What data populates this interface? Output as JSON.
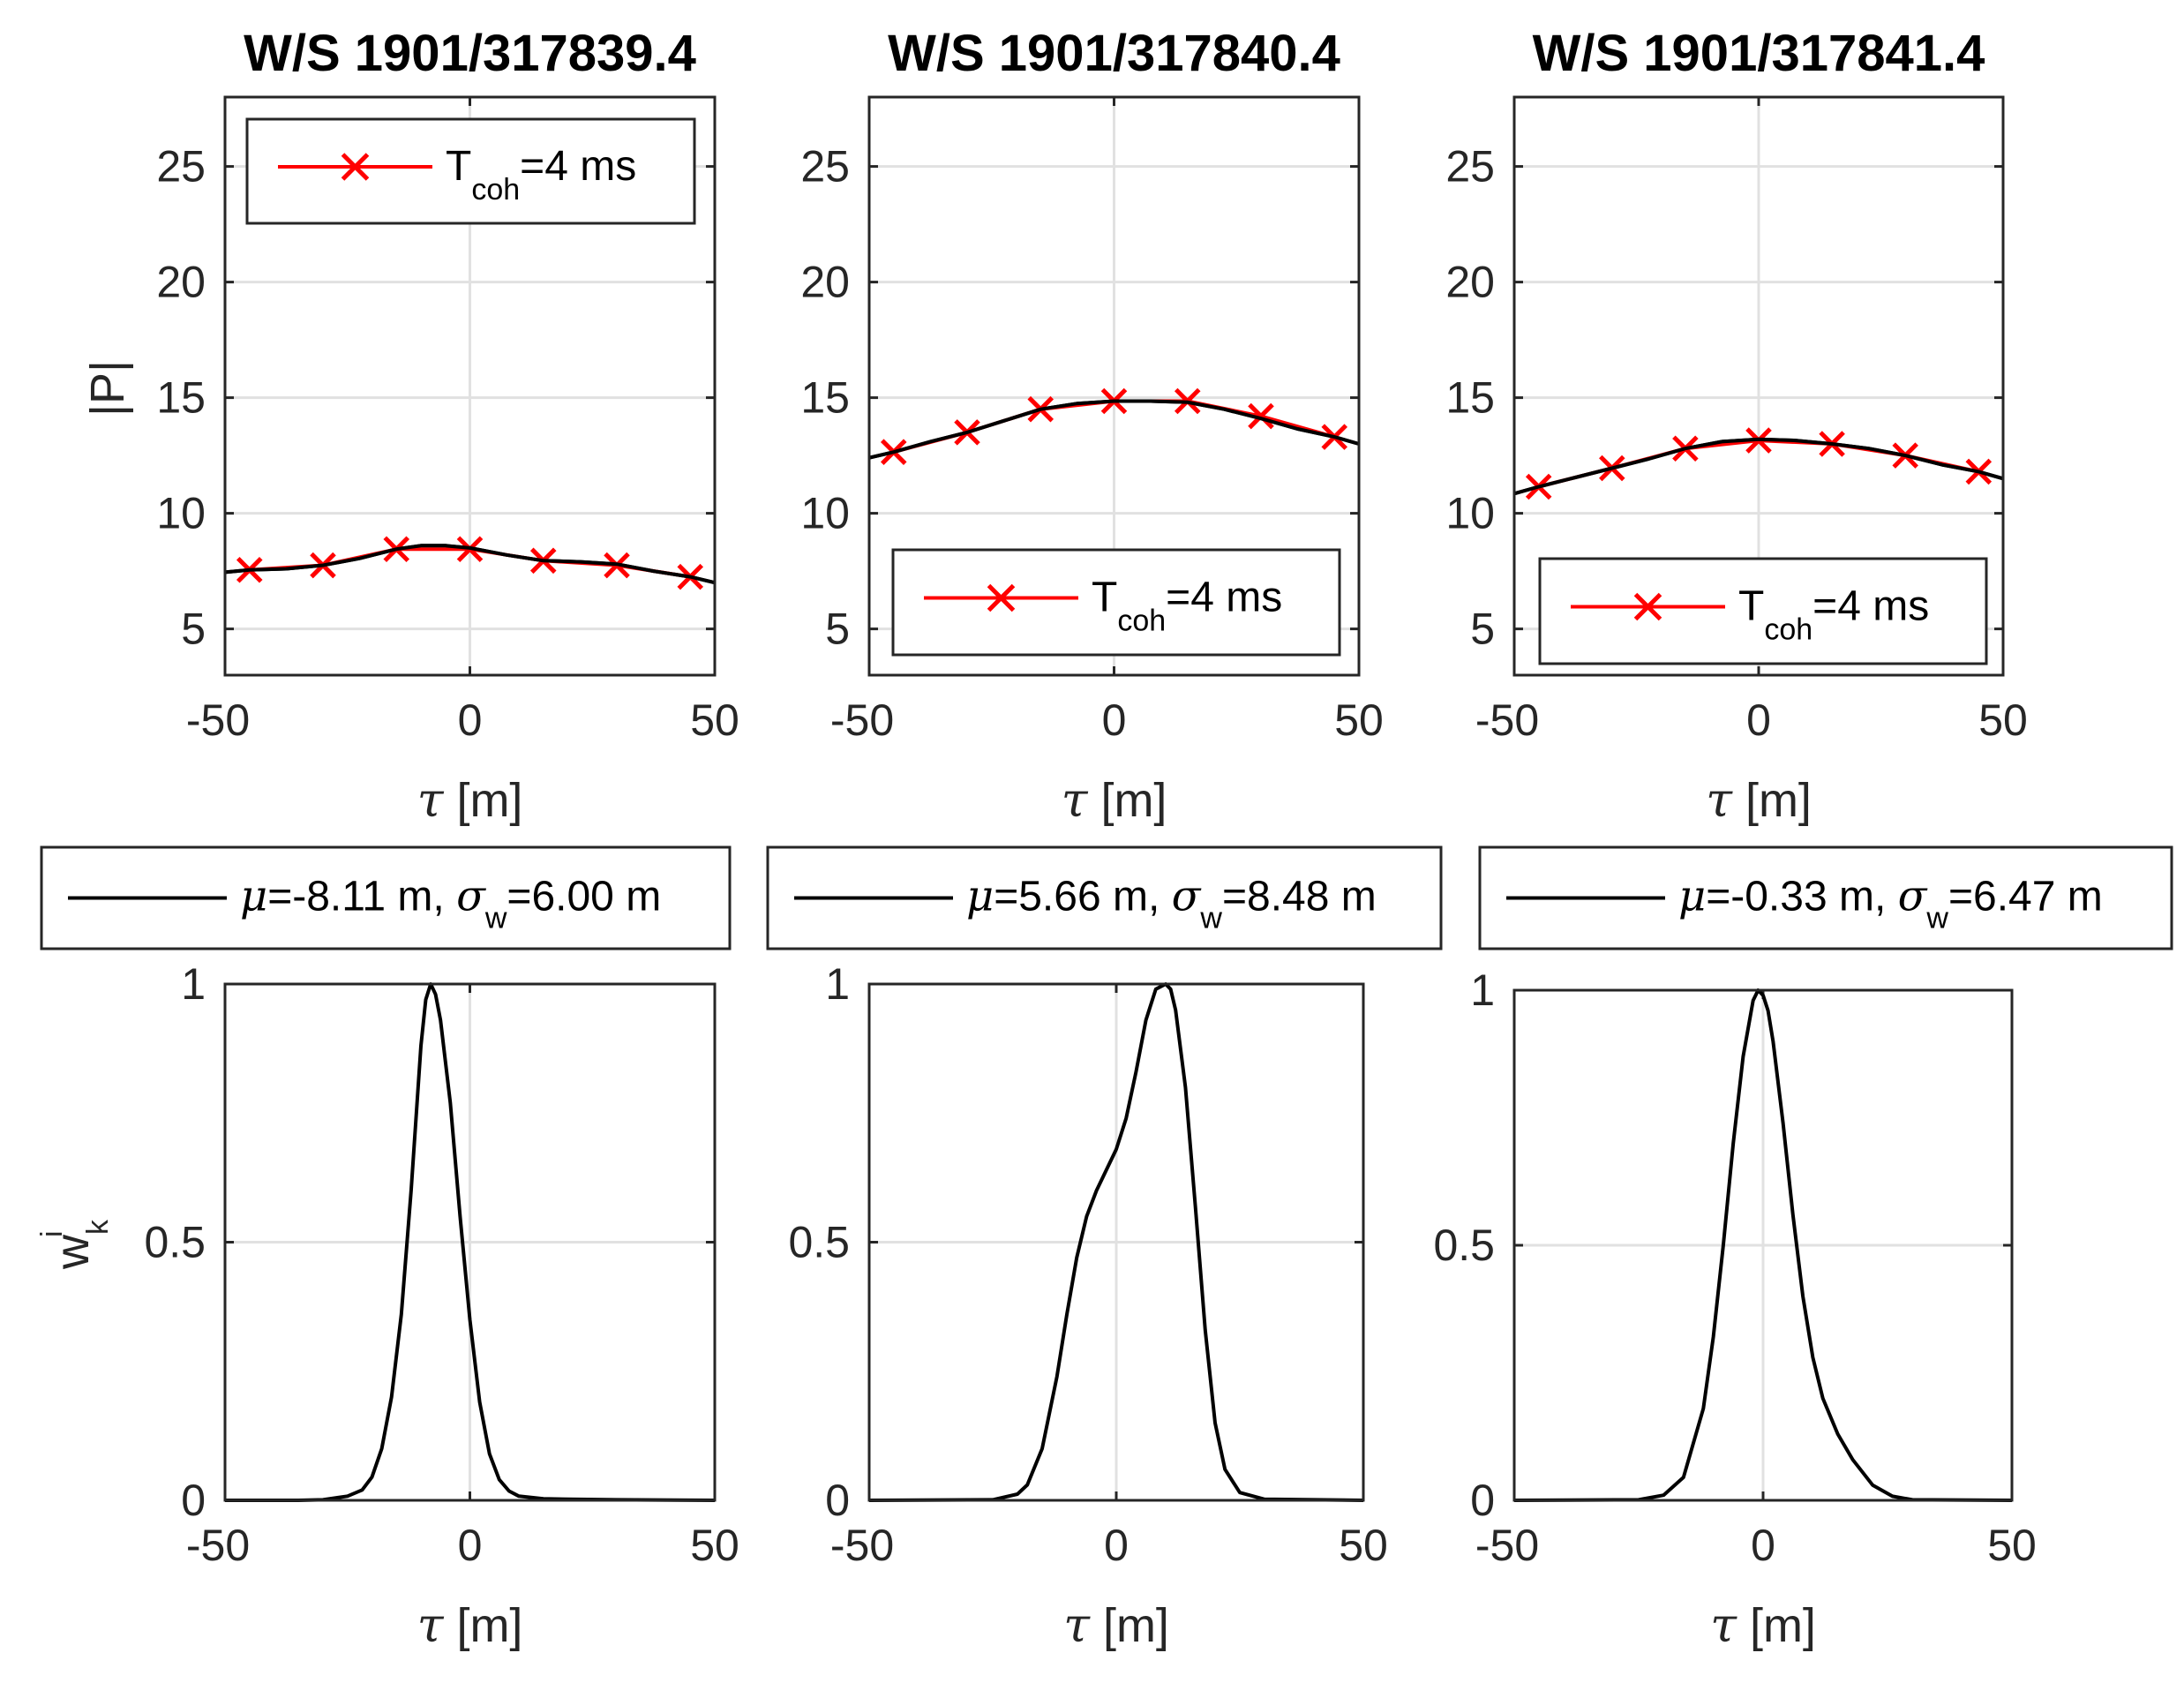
{
  "figure": {
    "y_label_top": "|P|",
    "y_label_bottom_main": "w",
    "y_label_bottom_sub": "k",
    "y_label_bottom_sup": "i",
    "x_label_symbol": "τ",
    "x_label_unit": " [m]"
  },
  "colors": {
    "red": "#ff0000",
    "black": "#000000",
    "grid": "#e1e1e1",
    "axis": "#262626"
  },
  "chart_data": [
    {
      "type": "line",
      "title": "W/S 1901/317839.4",
      "xlabel": "τ [m]",
      "ylabel": "|P|",
      "xlim": [
        -50,
        50
      ],
      "ylim": [
        3,
        28
      ],
      "xticks": [
        -50,
        0,
        50
      ],
      "yticks": [
        5,
        10,
        15,
        20,
        25
      ],
      "grid": true,
      "legend": {
        "position": "top",
        "prefix": "T",
        "sub": "coh",
        "suffix": "=4 ms"
      },
      "series": [
        {
          "name": "black-curve",
          "color": "#000000",
          "x": [
            -50,
            -45,
            -37.5,
            -30,
            -22.5,
            -15,
            -10,
            -5,
            0,
            7.5,
            15,
            22.5,
            30,
            37.5,
            45,
            50
          ],
          "values": [
            7.45,
            7.55,
            7.6,
            7.75,
            8.05,
            8.45,
            8.6,
            8.6,
            8.5,
            8.2,
            7.95,
            7.9,
            7.8,
            7.5,
            7.25,
            7.0
          ]
        },
        {
          "name": "red-curve",
          "color": "#ff0000",
          "x": [
            -45,
            -30,
            -15,
            0,
            15,
            30,
            45
          ],
          "values": [
            7.55,
            7.75,
            8.45,
            8.45,
            7.95,
            7.75,
            7.25
          ]
        }
      ]
    },
    {
      "type": "line",
      "title": "W/S 1901/317840.4",
      "xlabel": "τ [m]",
      "ylabel": "",
      "xlim": [
        -50,
        50
      ],
      "ylim": [
        3,
        28
      ],
      "xticks": [
        -50,
        0,
        50
      ],
      "yticks": [
        5,
        10,
        15,
        20,
        25
      ],
      "grid": true,
      "legend": {
        "position": "bottom",
        "prefix": "T",
        "sub": "coh",
        "suffix": "=4 ms"
      },
      "series": [
        {
          "name": "black-curve",
          "color": "#000000",
          "x": [
            -50,
            -45,
            -37.5,
            -30,
            -22.5,
            -15,
            -7.5,
            0,
            7.5,
            15,
            22.5,
            30,
            37.5,
            45,
            50
          ],
          "values": [
            12.4,
            12.65,
            13.1,
            13.5,
            14.0,
            14.5,
            14.75,
            14.85,
            14.85,
            14.8,
            14.5,
            14.1,
            13.65,
            13.3,
            13.0
          ]
        },
        {
          "name": "red-curve",
          "color": "#ff0000",
          "x": [
            -45,
            -30,
            -15,
            0,
            15,
            30,
            45
          ],
          "values": [
            12.65,
            13.5,
            14.5,
            14.85,
            14.85,
            14.2,
            13.3
          ]
        }
      ]
    },
    {
      "type": "line",
      "title": "W/S 1901/317841.4",
      "xlabel": "τ [m]",
      "ylabel": "",
      "xlim": [
        -50,
        50
      ],
      "ylim": [
        3,
        28
      ],
      "xticks": [
        -50,
        0,
        50
      ],
      "yticks": [
        5,
        10,
        15,
        20,
        25
      ],
      "grid": true,
      "legend": {
        "position": "bottom",
        "prefix": "T",
        "sub": "coh",
        "suffix": "=4 ms"
      },
      "series": [
        {
          "name": "black-curve",
          "color": "#000000",
          "x": [
            -50,
            -45,
            -37.5,
            -30,
            -22.5,
            -15,
            -7.5,
            0,
            7.5,
            15,
            22.5,
            30,
            37.5,
            45,
            50
          ],
          "values": [
            10.85,
            11.15,
            11.55,
            11.95,
            12.35,
            12.8,
            13.1,
            13.2,
            13.15,
            13.0,
            12.8,
            12.5,
            12.1,
            11.8,
            11.5
          ]
        },
        {
          "name": "red-curve",
          "color": "#ff0000",
          "x": [
            -45,
            -30,
            -15,
            0,
            15,
            30,
            45
          ],
          "values": [
            11.15,
            11.95,
            12.8,
            13.15,
            13.0,
            12.5,
            11.8
          ]
        }
      ]
    },
    {
      "type": "line",
      "title": "",
      "xlabel": "τ [m]",
      "ylabel": "w_k^i",
      "xlim": [
        -50,
        50
      ],
      "ylim": [
        0,
        1
      ],
      "xticks": [
        -50,
        0,
        50
      ],
      "yticks": [
        0,
        0.5,
        1
      ],
      "grid": true,
      "legend": {
        "position": "above",
        "mu": "=-8.11 m, ",
        "sigma_sub": "w",
        "sigma_val": "=6.00 m"
      },
      "series": [
        {
          "name": "weight-curve",
          "color": "#000000",
          "x": [
            -50,
            -35,
            -30,
            -25,
            -22,
            -20,
            -18,
            -16,
            -14,
            -12,
            -10,
            -9,
            -8,
            -7,
            -6,
            -4,
            -2,
            0,
            2,
            4,
            6,
            8,
            10,
            15,
            20,
            30,
            50
          ],
          "values": [
            0,
            0,
            0.001,
            0.008,
            0.02,
            0.045,
            0.1,
            0.2,
            0.36,
            0.6,
            0.88,
            0.97,
            1.0,
            0.98,
            0.93,
            0.77,
            0.55,
            0.35,
            0.19,
            0.09,
            0.04,
            0.018,
            0.008,
            0.003,
            0.002,
            0.001,
            0
          ]
        }
      ]
    },
    {
      "type": "line",
      "title": "",
      "xlabel": "τ [m]",
      "ylabel": "",
      "xlim": [
        -50,
        50
      ],
      "ylim": [
        0,
        1
      ],
      "xticks": [
        -50,
        0,
        50
      ],
      "yticks": [
        0,
        0.5,
        1
      ],
      "grid": true,
      "legend": {
        "position": "above",
        "mu": "=5.66 m, ",
        "sigma_sub": "w",
        "sigma_val": "=8.48 m"
      },
      "series": [
        {
          "name": "weight-curve",
          "color": "#000000",
          "x": [
            -50,
            -25,
            -20,
            -18,
            -15,
            -12,
            -10,
            -8,
            -6,
            -4,
            -2,
            0,
            2,
            4,
            6,
            8,
            10,
            11,
            12,
            14,
            16,
            18,
            20,
            22,
            25,
            30,
            50
          ],
          "values": [
            0,
            0.001,
            0.012,
            0.03,
            0.1,
            0.24,
            0.36,
            0.47,
            0.55,
            0.6,
            0.64,
            0.68,
            0.74,
            0.83,
            0.93,
            0.99,
            1.0,
            0.99,
            0.95,
            0.8,
            0.57,
            0.33,
            0.15,
            0.06,
            0.015,
            0.002,
            0
          ]
        }
      ]
    },
    {
      "type": "line",
      "title": "",
      "xlabel": "τ [m]",
      "ylabel": "",
      "xlim": [
        -50,
        50
      ],
      "ylim": [
        0,
        1
      ],
      "xticks": [
        -50,
        0,
        50
      ],
      "yticks": [
        0,
        0.5,
        1
      ],
      "grid": true,
      "legend": {
        "position": "above",
        "mu": "=-0.33 m, ",
        "sigma_sub": "w",
        "sigma_val": "=6.47 m"
      },
      "series": [
        {
          "name": "weight-curve",
          "color": "#000000",
          "x": [
            -50,
            -25,
            -20,
            -16,
            -12,
            -10,
            -8,
            -6,
            -4,
            -2,
            -1,
            0,
            1,
            2,
            4,
            6,
            8,
            10,
            12,
            15,
            18,
            22,
            26,
            30,
            50
          ],
          "values": [
            0,
            0.001,
            0.01,
            0.045,
            0.18,
            0.32,
            0.5,
            0.7,
            0.87,
            0.98,
            1.0,
            0.99,
            0.96,
            0.9,
            0.74,
            0.56,
            0.4,
            0.28,
            0.2,
            0.13,
            0.08,
            0.03,
            0.008,
            0.001,
            0
          ]
        }
      ]
    }
  ]
}
